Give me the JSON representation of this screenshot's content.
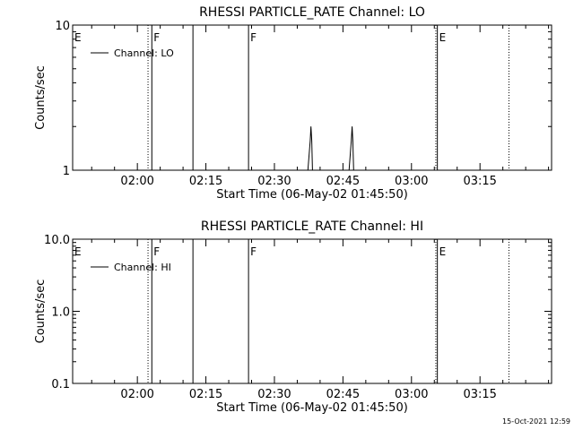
{
  "footer": {
    "timestamp": "15-Oct-2021 12:59"
  },
  "chart_data": [
    {
      "type": "line",
      "title": "RHESSI PARTICLE_RATE Channel: LO",
      "xlabel": "Start Time (06-May-02 01:45:50)",
      "ylabel": "Counts/sec",
      "yscale": "log",
      "ylim": [
        1,
        10
      ],
      "y_ticks": [
        {
          "v": 1,
          "label": "1"
        },
        {
          "v": 10,
          "label": "10"
        }
      ],
      "xlim_sec": [
        0,
        6290
      ],
      "x_ticks": [
        {
          "t": 850,
          "label": "02:00"
        },
        {
          "t": 1750,
          "label": "02:15"
        },
        {
          "t": 2650,
          "label": "02:30"
        },
        {
          "t": 3550,
          "label": "02:45"
        },
        {
          "t": 4450,
          "label": "03:00"
        },
        {
          "t": 5350,
          "label": "03:15"
        }
      ],
      "legend": {
        "position": "top-left",
        "entries": [
          "Channel: LO"
        ]
      },
      "markers": [
        {
          "t": 0,
          "label": "E",
          "style": "none"
        },
        {
          "t": 990,
          "label": "",
          "style": "dotted"
        },
        {
          "t": 1040,
          "label": "F",
          "style": "solid"
        },
        {
          "t": 1580,
          "label": "",
          "style": "solid"
        },
        {
          "t": 2310,
          "label": "F",
          "style": "solid"
        },
        {
          "t": 4770,
          "label": "",
          "style": "dotted"
        },
        {
          "t": 4790,
          "label": "E",
          "style": "solid"
        },
        {
          "t": 5730,
          "label": "",
          "style": "dotted"
        }
      ],
      "series": [
        {
          "name": "Channel: LO",
          "points": [
            [
              3090,
              1
            ],
            [
              3120,
              1.6
            ],
            [
              3130,
              2.0
            ],
            [
              3140,
              1.6
            ],
            [
              3150,
              1
            ],
            [
              3630,
              1
            ],
            [
              3660,
              1.6
            ],
            [
              3670,
              2.0
            ],
            [
              3680,
              1.6
            ],
            [
              3690,
              1
            ]
          ]
        }
      ]
    },
    {
      "type": "line",
      "title": "RHESSI PARTICLE_RATE Channel: HI",
      "xlabel": "Start Time (06-May-02 01:45:50)",
      "ylabel": "Counts/sec",
      "yscale": "log",
      "ylim": [
        0.1,
        10
      ],
      "y_ticks": [
        {
          "v": 0.1,
          "label": "0.1"
        },
        {
          "v": 1,
          "label": "1.0"
        },
        {
          "v": 10,
          "label": "10.0"
        }
      ],
      "xlim_sec": [
        0,
        6290
      ],
      "x_ticks": [
        {
          "t": 850,
          "label": "02:00"
        },
        {
          "t": 1750,
          "label": "02:15"
        },
        {
          "t": 2650,
          "label": "02:30"
        },
        {
          "t": 3550,
          "label": "02:45"
        },
        {
          "t": 4450,
          "label": "03:00"
        },
        {
          "t": 5350,
          "label": "03:15"
        }
      ],
      "legend": {
        "position": "top-left",
        "entries": [
          "Channel: HI"
        ]
      },
      "markers": [
        {
          "t": 0,
          "label": "E",
          "style": "none"
        },
        {
          "t": 990,
          "label": "",
          "style": "dotted"
        },
        {
          "t": 1040,
          "label": "F",
          "style": "solid"
        },
        {
          "t": 1580,
          "label": "",
          "style": "solid"
        },
        {
          "t": 2310,
          "label": "F",
          "style": "solid"
        },
        {
          "t": 4770,
          "label": "",
          "style": "dotted"
        },
        {
          "t": 4790,
          "label": "E",
          "style": "solid"
        },
        {
          "t": 5730,
          "label": "",
          "style": "dotted"
        }
      ],
      "series": [
        {
          "name": "Channel: HI",
          "points": []
        }
      ]
    }
  ]
}
